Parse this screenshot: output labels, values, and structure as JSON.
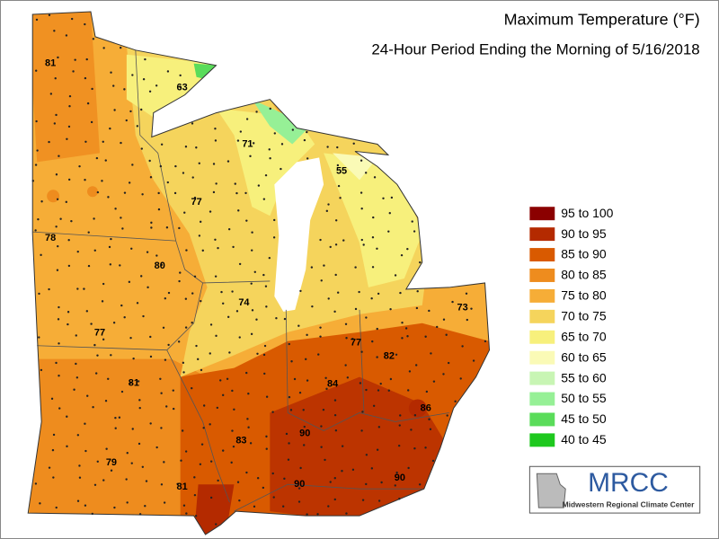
{
  "header": {
    "title": "Maximum Temperature (°F)",
    "subtitle": "24-Hour Period Ending the Morning of 5/16/2018"
  },
  "legend": [
    {
      "label": "95 to 100",
      "color": "#8b0000"
    },
    {
      "label": "90 to 95",
      "color": "#b42a00"
    },
    {
      "label": "85 to 90",
      "color": "#d95a00"
    },
    {
      "label": "80 to 85",
      "color": "#ee8c1e"
    },
    {
      "label": "75 to 80",
      "color": "#f6ad37"
    },
    {
      "label": "70 to 75",
      "color": "#f5d45c"
    },
    {
      "label": "65 to 70",
      "color": "#f7f07c"
    },
    {
      "label": "60 to 65",
      "color": "#fafab6"
    },
    {
      "label": "55 to 60",
      "color": "#c8f5b4"
    },
    {
      "label": "50 to 55",
      "color": "#96f096"
    },
    {
      "label": "45 to 50",
      "color": "#5adc5a"
    },
    {
      "label": "40 to 45",
      "color": "#1ec81e"
    }
  ],
  "labels": [
    "81",
    "63",
    "71",
    "55",
    "77",
    "78",
    "80",
    "74",
    "73",
    "77",
    "77",
    "82",
    "81",
    "84",
    "86",
    "90",
    "83",
    "79",
    "81",
    "90",
    "90"
  ],
  "logo": {
    "name": "MRCC",
    "subtitle": "Midwestern Regional Climate Center"
  }
}
